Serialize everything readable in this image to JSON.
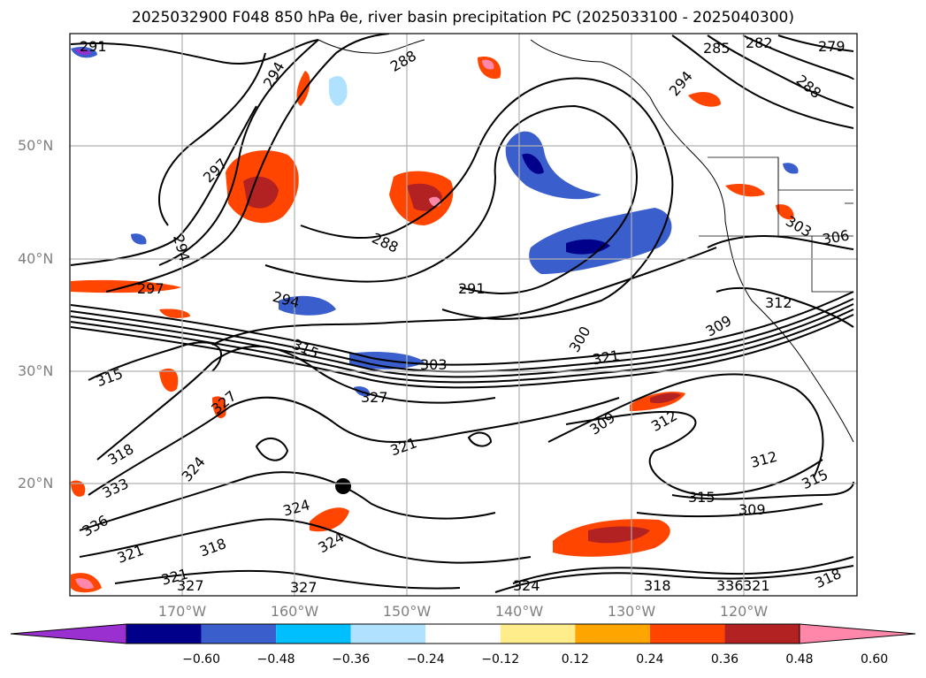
{
  "title": "2025032900 F048 850 hPa θe, river basin precipitation PC (2025033100 - 2025040300)",
  "lat_labels": [
    "50°N",
    "40°N",
    "30°N",
    "20°N"
  ],
  "lon_labels": [
    "170°W",
    "160°W",
    "150°W",
    "140°W",
    "130°W",
    "120°W"
  ],
  "colorbar": {
    "ticks": [
      "−0.60",
      "−0.48",
      "−0.36",
      "−0.24",
      "−0.12",
      "0.12",
      "0.24",
      "0.36",
      "0.48",
      "0.60"
    ],
    "colors": [
      "#9b30d0",
      "#00008b",
      "#3a5fcd",
      "#00bfff",
      "#b0e2ff",
      "#ffffff",
      "#ffec8b",
      "#ffa500",
      "#ff4500",
      "#b22222",
      "#ff88aa"
    ]
  },
  "contour_labels": [
    "291",
    "294",
    "285",
    "288",
    "282",
    "279",
    "288",
    "294",
    "297",
    "294",
    "288",
    "297",
    "294",
    "291",
    "300",
    "309",
    "312",
    "303",
    "306",
    "315",
    "315",
    "303",
    "321",
    "327",
    "327",
    "318",
    "324",
    "321",
    "309",
    "312",
    "312",
    "315",
    "333",
    "315",
    "309",
    "336",
    "318",
    "324",
    "321",
    "324",
    "321",
    "327",
    "318",
    "324",
    "336",
    "327",
    "318",
    "321"
  ]
}
